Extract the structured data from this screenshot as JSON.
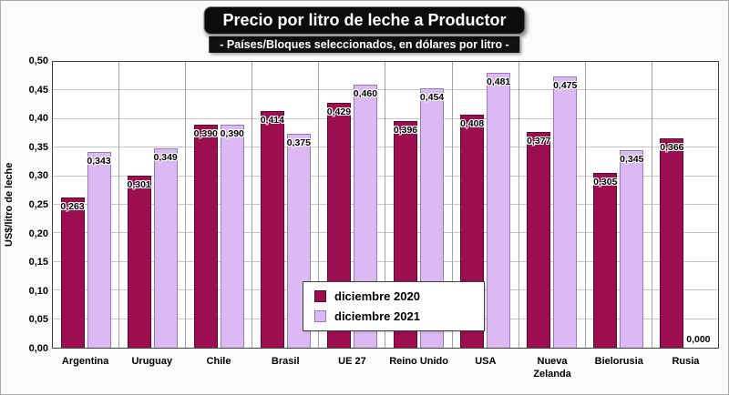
{
  "title": "Precio por litro de leche a Productor",
  "subtitle": "- Países/Bloques seleccionados, en dólares por litro -",
  "y_axis_title": "US$/litro de leche",
  "chart_data": {
    "type": "bar",
    "title": "Precio por litro de leche a Productor",
    "subtitle": "- Países/Bloques seleccionados, en dólares por litro -",
    "ylabel": "US$/litro de leche",
    "xlabel": "",
    "categories": [
      "Argentina",
      "Uruguay",
      "Chile",
      "Brasil",
      "UE 27",
      "Reino Unido",
      "USA",
      "Nueva Zelanda",
      "Bielorusia",
      "Rusia"
    ],
    "series": [
      {
        "name": "diciembre 2020",
        "color": "#9C0E50",
        "border_color": "#5d0830",
        "values": [
          0.263,
          0.301,
          0.39,
          0.414,
          0.429,
          0.396,
          0.408,
          0.377,
          0.305,
          0.366
        ]
      },
      {
        "name": "diciembre 2021",
        "color": "#DCB9F2",
        "border_color": "#9b79bc",
        "values": [
          0.343,
          0.349,
          0.39,
          0.375,
          0.46,
          0.454,
          0.481,
          0.475,
          0.345,
          0.0
        ]
      }
    ],
    "ylim": [
      0,
      0.5
    ],
    "ytick_step": 0.05,
    "ytick_labels": [
      "0,00",
      "0,05",
      "0,10",
      "0,15",
      "0,20",
      "0,25",
      "0,30",
      "0,35",
      "0,40",
      "0,45",
      "0,50"
    ],
    "decimal_separator": ",",
    "value_label_decimals": 3,
    "grid": true,
    "legend_position": "bottom-center-overlay"
  }
}
